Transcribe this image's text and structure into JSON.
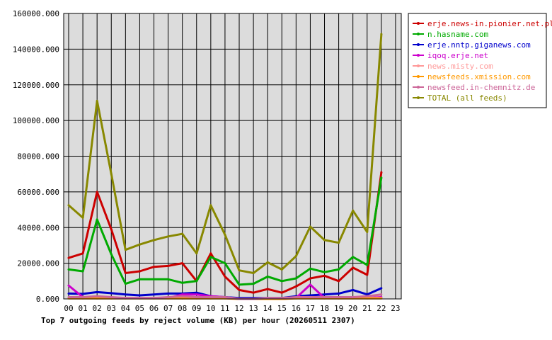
{
  "chart_data": {
    "type": "line",
    "title": "Top 7 outgoing feeds by reject volume (KB) per hour (20260511 2307)",
    "xlabel": "",
    "ylabel": "",
    "categories": [
      "00",
      "01",
      "02",
      "03",
      "04",
      "05",
      "06",
      "07",
      "08",
      "09",
      "10",
      "11",
      "12",
      "13",
      "14",
      "15",
      "16",
      "17",
      "18",
      "19",
      "20",
      "21",
      "22",
      "23"
    ],
    "ylim": [
      0,
      160000
    ],
    "yticks": [
      "0.000",
      "20000.000",
      "40000.000",
      "60000.000",
      "80000.000",
      "100000.000",
      "120000.000",
      "140000.000",
      "160000.000"
    ],
    "ytick_values": [
      0,
      20000,
      40000,
      60000,
      80000,
      100000,
      120000,
      140000,
      160000
    ],
    "grid": true,
    "legend_position": "top-right outside plot",
    "series": [
      {
        "name": "erje.news-in.pionier.net.pl",
        "color": "#cc0000",
        "values": [
          23000,
          25500,
          60000,
          39000,
          14500,
          15500,
          18000,
          18500,
          20000,
          10000,
          25500,
          12500,
          5000,
          3500,
          5500,
          3500,
          7000,
          11500,
          13000,
          10000,
          17500,
          13500,
          71000,
          null
        ]
      },
      {
        "name": "n.hasname.com",
        "color": "#00aa00",
        "values": [
          16500,
          15500,
          44500,
          25000,
          8500,
          11000,
          11000,
          11000,
          9000,
          10000,
          23500,
          20000,
          8000,
          8500,
          12500,
          10000,
          11500,
          17000,
          15000,
          16500,
          23500,
          19000,
          68000,
          null
        ]
      },
      {
        "name": "erje.nntp.giganews.com",
        "color": "#0000cc",
        "values": [
          3000,
          2800,
          3800,
          3200,
          2500,
          2000,
          2500,
          3000,
          3000,
          3500,
          1500,
          1000,
          500,
          500,
          500,
          500,
          1500,
          2000,
          2500,
          3000,
          5000,
          2500,
          6000,
          null
        ]
      },
      {
        "name": "iqoq.erje.net",
        "color": "#cc00cc",
        "values": [
          7500,
          1000,
          500,
          500,
          500,
          500,
          500,
          500,
          2500,
          2500,
          1500,
          1000,
          0,
          0,
          0,
          0,
          500,
          8000,
          500,
          500,
          500,
          500,
          1000,
          null
        ]
      },
      {
        "name": "news.misty.com",
        "color": "#ff9999",
        "values": [
          500,
          500,
          500,
          500,
          500,
          500,
          500,
          500,
          500,
          500,
          500,
          500,
          0,
          0,
          0,
          0,
          500,
          500,
          500,
          500,
          500,
          500,
          500,
          null
        ]
      },
      {
        "name": "newsfeeds.xmission.com",
        "color": "#ff9900",
        "values": [
          300,
          300,
          300,
          300,
          300,
          300,
          300,
          300,
          300,
          300,
          300,
          300,
          0,
          0,
          0,
          0,
          300,
          300,
          300,
          300,
          300,
          300,
          300,
          null
        ]
      },
      {
        "name": "newsfeed.in-chemnitz.de",
        "color": "#cc6699",
        "values": [
          1000,
          1000,
          1500,
          1000,
          500,
          500,
          500,
          1000,
          1500,
          1000,
          1000,
          1000,
          0,
          0,
          500,
          500,
          1000,
          1000,
          1000,
          1000,
          1000,
          1500,
          2500,
          null
        ]
      },
      {
        "name": "TOTAL (all feeds)",
        "color": "#888800",
        "values": [
          52500,
          45500,
          111000,
          70000,
          27500,
          30500,
          33000,
          35000,
          36500,
          25500,
          52500,
          36000,
          16000,
          14500,
          20500,
          16500,
          24000,
          40500,
          33000,
          31500,
          49500,
          37500,
          148500,
          null
        ]
      }
    ]
  }
}
